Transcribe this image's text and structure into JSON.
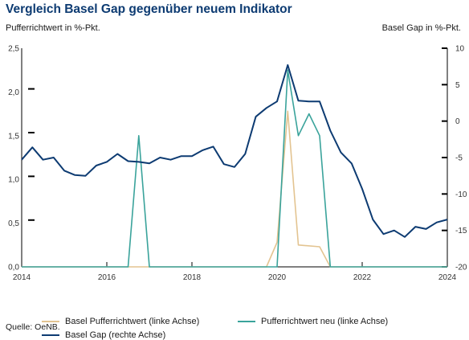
{
  "header": {
    "title": "Vergleich Basel Gap gegenüber neuem Indikator",
    "left_axis_label": "Pufferrichtwert in %-Pkt.",
    "right_axis_label": "Basel Gap in %-Pkt."
  },
  "footer": {
    "source": "Quelle: OeNB."
  },
  "chart_data": {
    "type": "line",
    "title": "Vergleich Basel Gap gegenüber neuem Indikator",
    "xlim": [
      2014,
      2024
    ],
    "x_ticks": [
      "2014",
      "2016",
      "2018",
      "2020",
      "2022",
      "2024"
    ],
    "y_left": {
      "label": "Pufferrichtwert in %-Pkt.",
      "lim": [
        0,
        2.5
      ],
      "ticks": [
        "0,0",
        "0,5",
        "1,0",
        "1,5",
        "2,0",
        "2,5"
      ]
    },
    "y_right": {
      "label": "Basel Gap in %-Pkt.",
      "lim": [
        -20,
        10
      ],
      "ticks": [
        "-20",
        "-15",
        "-10",
        "-5",
        "0",
        "5",
        "10"
      ]
    },
    "grid": false,
    "legend_position": "bottom",
    "series": [
      {
        "name": "Basel Pufferrichtwert (linke Achse)",
        "axis": "left",
        "color": "#e3c491",
        "points": [
          [
            2014.0,
            0
          ],
          [
            2019.75,
            0
          ],
          [
            2020.0,
            0.28
          ],
          [
            2020.25,
            1.78
          ],
          [
            2020.5,
            0.25
          ],
          [
            2021.0,
            0.23
          ],
          [
            2021.25,
            0
          ],
          [
            2024.0,
            0
          ]
        ]
      },
      {
        "name": "Pufferrichtwert neu (linke Achse)",
        "axis": "left",
        "color": "#3aa39b",
        "points": [
          [
            2014.0,
            0
          ],
          [
            2016.5,
            0
          ],
          [
            2016.75,
            1.5
          ],
          [
            2017.0,
            0
          ],
          [
            2020.0,
            0
          ],
          [
            2020.25,
            2.25
          ],
          [
            2020.5,
            1.5
          ],
          [
            2020.75,
            1.75
          ],
          [
            2021.0,
            1.5
          ],
          [
            2021.25,
            0
          ],
          [
            2024.0,
            0
          ]
        ]
      },
      {
        "name": "Basel Gap (rechte Achse)",
        "axis": "right",
        "color": "#0d3b72",
        "points": [
          [
            2014.0,
            -5.3
          ],
          [
            2014.25,
            -3.6
          ],
          [
            2014.5,
            -5.3
          ],
          [
            2014.75,
            -5.0
          ],
          [
            2015.0,
            -6.8
          ],
          [
            2015.25,
            -7.4
          ],
          [
            2015.5,
            -7.5
          ],
          [
            2015.75,
            -6.1
          ],
          [
            2016.0,
            -5.6
          ],
          [
            2016.25,
            -4.5
          ],
          [
            2016.5,
            -5.5
          ],
          [
            2016.75,
            -5.6
          ],
          [
            2017.0,
            -5.8
          ],
          [
            2017.25,
            -5.0
          ],
          [
            2017.5,
            -5.3
          ],
          [
            2017.75,
            -4.8
          ],
          [
            2018.0,
            -4.8
          ],
          [
            2018.25,
            -4.0
          ],
          [
            2018.5,
            -3.5
          ],
          [
            2018.75,
            -5.9
          ],
          [
            2019.0,
            -6.3
          ],
          [
            2019.25,
            -4.5
          ],
          [
            2019.5,
            0.6
          ],
          [
            2019.75,
            1.8
          ],
          [
            2020.0,
            2.7
          ],
          [
            2020.25,
            7.7
          ],
          [
            2020.5,
            2.8
          ],
          [
            2020.75,
            2.7
          ],
          [
            2021.0,
            2.7
          ],
          [
            2021.25,
            -1.3
          ],
          [
            2021.5,
            -4.3
          ],
          [
            2021.75,
            -5.8
          ],
          [
            2022.0,
            -9.3
          ],
          [
            2022.25,
            -13.5
          ],
          [
            2022.5,
            -15.5
          ],
          [
            2022.75,
            -15.0
          ],
          [
            2023.0,
            -15.9
          ],
          [
            2023.25,
            -14.5
          ],
          [
            2023.5,
            -14.8
          ],
          [
            2023.75,
            -13.9
          ],
          [
            2024.0,
            -13.5
          ]
        ]
      }
    ]
  }
}
